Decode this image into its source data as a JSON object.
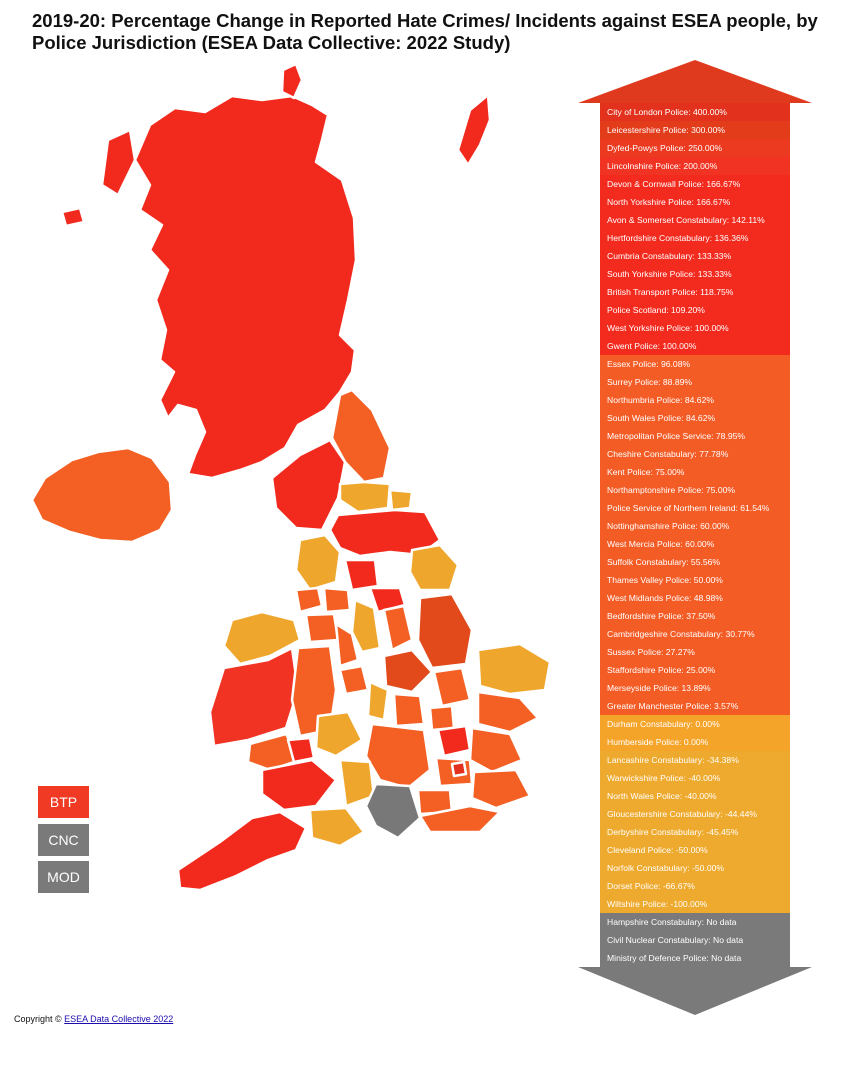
{
  "title": "2019-20: Percentage Change in Reported Hate Crimes/ Incidents against ESEA people, by Police Jurisdiction (ESEA Data Collective: 2022 Study)",
  "colors": {
    "very_high": "#f22a1e",
    "high": "#f45f24",
    "mid_dark": "#e24a1c",
    "low": "#efa62c",
    "no_data": "#787878",
    "btp": "#f03a24",
    "arrow_top": "#e03a1e",
    "arrow_bottom": "#7a7a7a"
  },
  "legend": [
    {
      "label": "BTP",
      "color": "#f03a24"
    },
    {
      "label": "CNC",
      "color": "#7a7a7a"
    },
    {
      "label": "MOD",
      "color": "#7a7a7a"
    }
  ],
  "jurisdictions": [
    {
      "label": "City of London Police: 400.00%",
      "color": "#e2321d"
    },
    {
      "label": "Leicestershire Police: 300.00%",
      "color": "#e33c1b"
    },
    {
      "label": "Dyfed-Powys Police: 250.00%",
      "color": "#ec3a20"
    },
    {
      "label": "Lincolnshire Police: 200.00%",
      "color": "#f03322"
    },
    {
      "label": "Devon & Cornwall Police: 166.67%",
      "color": "#f32b1f"
    },
    {
      "label": "North Yorkshire Police: 166.67%",
      "color": "#f32b1f"
    },
    {
      "label": "Avon & Somerset Constabulary: 142.11%",
      "color": "#f32b1f"
    },
    {
      "label": "Hertfordshire Constabulary: 136.36%",
      "color": "#f32b1f"
    },
    {
      "label": "Cumbria Constabulary: 133.33%",
      "color": "#f32b1f"
    },
    {
      "label": "South Yorkshire Police: 133.33%",
      "color": "#f32b1f"
    },
    {
      "label": "British Transport Police: 118.75%",
      "color": "#f32b1f"
    },
    {
      "label": "Police Scotland: 109.20%",
      "color": "#f32b1f"
    },
    {
      "label": "West Yorkshire Police: 100.00%",
      "color": "#f32b1f"
    },
    {
      "label": "Gwent Police: 100.00%",
      "color": "#f32b1f"
    },
    {
      "label": "Essex Police: 96.08%",
      "color": "#f45c26"
    },
    {
      "label": "Surrey Police: 88.89%",
      "color": "#f45c26"
    },
    {
      "label": "Northumbria Police: 84.62%",
      "color": "#f45c26"
    },
    {
      "label": "South Wales Police: 84.62%",
      "color": "#f45c26"
    },
    {
      "label": "Metropolitan Police Service: 78.95%",
      "color": "#f45c26"
    },
    {
      "label": "Cheshire Constabulary: 77.78%",
      "color": "#f45c26"
    },
    {
      "label": "Kent Police: 75.00%",
      "color": "#f45c26"
    },
    {
      "label": "Northamptonshire Police: 75.00%",
      "color": "#f45c26"
    },
    {
      "label": "Police Service of Northern Ireland: 61.54%",
      "color": "#f45c26"
    },
    {
      "label": "Nottinghamshire Police: 60.00%",
      "color": "#f45c26"
    },
    {
      "label": "West Mercia Police: 60.00%",
      "color": "#f45c26"
    },
    {
      "label": "Suffolk Constabulary: 55.56%",
      "color": "#f45c26"
    },
    {
      "label": "Thames Valley Police: 50.00%",
      "color": "#f45c26"
    },
    {
      "label": "West Midlands Police: 48.98%",
      "color": "#f45c26"
    },
    {
      "label": "Bedfordshire Police: 37.50%",
      "color": "#f45c26"
    },
    {
      "label": "Cambridgeshire Constabulary: 30.77%",
      "color": "#f45c26"
    },
    {
      "label": "Sussex Police: 27.27%",
      "color": "#f45c26"
    },
    {
      "label": "Staffordshire Police: 25.00%",
      "color": "#f45c26"
    },
    {
      "label": "Merseyside Police: 13.89%",
      "color": "#f45c26"
    },
    {
      "label": "Greater Manchester Police: 3.57%",
      "color": "#f45c26"
    },
    {
      "label": "Durham Constabulary: 0.00%",
      "color": "#f5a42a"
    },
    {
      "label": "Humberside Police: 0.00%",
      "color": "#f5a42a"
    },
    {
      "label": "Lancashire Constabulary: -34.38%",
      "color": "#eeaa2e"
    },
    {
      "label": "Warwickshire Police: -40.00%",
      "color": "#eeaa2e"
    },
    {
      "label": "North Wales Police: -40.00%",
      "color": "#eeaa2e"
    },
    {
      "label": "Gloucestershire Constabulary: -44.44%",
      "color": "#eeaa2e"
    },
    {
      "label": "Derbyshire Constabulary: -45.45%",
      "color": "#eeaa2e"
    },
    {
      "label": "Cleveland Police: -50.00%",
      "color": "#eeaa2e"
    },
    {
      "label": "Norfolk Constabulary: -50.00%",
      "color": "#eeaa2e"
    },
    {
      "label": "Dorset Police: -66.67%",
      "color": "#eeaa2e"
    },
    {
      "label": "Wiltshire Police: -100.00%",
      "color": "#eeaa2e"
    },
    {
      "label": "Hampshire Constabulary: No data",
      "color": "#7a7a7a"
    },
    {
      "label": "Civil Nuclear Constabulary: No data",
      "color": "#7a7a7a"
    },
    {
      "label": "Ministry of Defence Police: No data",
      "color": "#7a7a7a"
    }
  ],
  "copyright": {
    "prefix": "Copyright © ",
    "link_text": "ESEA Data Collective 2022"
  }
}
